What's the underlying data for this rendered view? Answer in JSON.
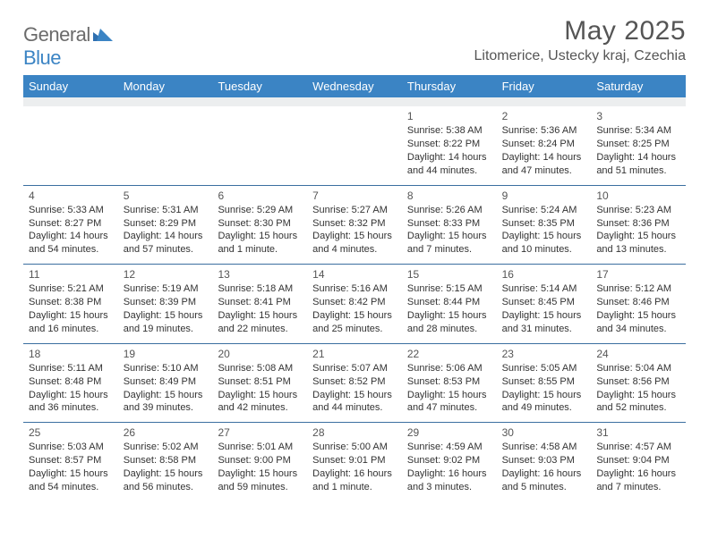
{
  "logo": {
    "general": "General",
    "blue": "Blue"
  },
  "title": "May 2025",
  "location": "Litomerice, Ustecky kraj, Czechia",
  "colors": {
    "header_bg": "#3b84c4",
    "header_text": "#ffffff",
    "sep_bg": "#eceeef",
    "row_border": "#3b6fa0",
    "text": "#333333",
    "title_text": "#555555"
  },
  "day_headers": [
    "Sunday",
    "Monday",
    "Tuesday",
    "Wednesday",
    "Thursday",
    "Friday",
    "Saturday"
  ],
  "weeks": [
    [
      {
        "n": "",
        "lines": []
      },
      {
        "n": "",
        "lines": []
      },
      {
        "n": "",
        "lines": []
      },
      {
        "n": "",
        "lines": []
      },
      {
        "n": "1",
        "lines": [
          "Sunrise: 5:38 AM",
          "Sunset: 8:22 PM",
          "Daylight: 14 hours and 44 minutes."
        ]
      },
      {
        "n": "2",
        "lines": [
          "Sunrise: 5:36 AM",
          "Sunset: 8:24 PM",
          "Daylight: 14 hours and 47 minutes."
        ]
      },
      {
        "n": "3",
        "lines": [
          "Sunrise: 5:34 AM",
          "Sunset: 8:25 PM",
          "Daylight: 14 hours and 51 minutes."
        ]
      }
    ],
    [
      {
        "n": "4",
        "lines": [
          "Sunrise: 5:33 AM",
          "Sunset: 8:27 PM",
          "Daylight: 14 hours and 54 minutes."
        ]
      },
      {
        "n": "5",
        "lines": [
          "Sunrise: 5:31 AM",
          "Sunset: 8:29 PM",
          "Daylight: 14 hours and 57 minutes."
        ]
      },
      {
        "n": "6",
        "lines": [
          "Sunrise: 5:29 AM",
          "Sunset: 8:30 PM",
          "Daylight: 15 hours and 1 minute."
        ]
      },
      {
        "n": "7",
        "lines": [
          "Sunrise: 5:27 AM",
          "Sunset: 8:32 PM",
          "Daylight: 15 hours and 4 minutes."
        ]
      },
      {
        "n": "8",
        "lines": [
          "Sunrise: 5:26 AM",
          "Sunset: 8:33 PM",
          "Daylight: 15 hours and 7 minutes."
        ]
      },
      {
        "n": "9",
        "lines": [
          "Sunrise: 5:24 AM",
          "Sunset: 8:35 PM",
          "Daylight: 15 hours and 10 minutes."
        ]
      },
      {
        "n": "10",
        "lines": [
          "Sunrise: 5:23 AM",
          "Sunset: 8:36 PM",
          "Daylight: 15 hours and 13 minutes."
        ]
      }
    ],
    [
      {
        "n": "11",
        "lines": [
          "Sunrise: 5:21 AM",
          "Sunset: 8:38 PM",
          "Daylight: 15 hours and 16 minutes."
        ]
      },
      {
        "n": "12",
        "lines": [
          "Sunrise: 5:19 AM",
          "Sunset: 8:39 PM",
          "Daylight: 15 hours and 19 minutes."
        ]
      },
      {
        "n": "13",
        "lines": [
          "Sunrise: 5:18 AM",
          "Sunset: 8:41 PM",
          "Daylight: 15 hours and 22 minutes."
        ]
      },
      {
        "n": "14",
        "lines": [
          "Sunrise: 5:16 AM",
          "Sunset: 8:42 PM",
          "Daylight: 15 hours and 25 minutes."
        ]
      },
      {
        "n": "15",
        "lines": [
          "Sunrise: 5:15 AM",
          "Sunset: 8:44 PM",
          "Daylight: 15 hours and 28 minutes."
        ]
      },
      {
        "n": "16",
        "lines": [
          "Sunrise: 5:14 AM",
          "Sunset: 8:45 PM",
          "Daylight: 15 hours and 31 minutes."
        ]
      },
      {
        "n": "17",
        "lines": [
          "Sunrise: 5:12 AM",
          "Sunset: 8:46 PM",
          "Daylight: 15 hours and 34 minutes."
        ]
      }
    ],
    [
      {
        "n": "18",
        "lines": [
          "Sunrise: 5:11 AM",
          "Sunset: 8:48 PM",
          "Daylight: 15 hours and 36 minutes."
        ]
      },
      {
        "n": "19",
        "lines": [
          "Sunrise: 5:10 AM",
          "Sunset: 8:49 PM",
          "Daylight: 15 hours and 39 minutes."
        ]
      },
      {
        "n": "20",
        "lines": [
          "Sunrise: 5:08 AM",
          "Sunset: 8:51 PM",
          "Daylight: 15 hours and 42 minutes."
        ]
      },
      {
        "n": "21",
        "lines": [
          "Sunrise: 5:07 AM",
          "Sunset: 8:52 PM",
          "Daylight: 15 hours and 44 minutes."
        ]
      },
      {
        "n": "22",
        "lines": [
          "Sunrise: 5:06 AM",
          "Sunset: 8:53 PM",
          "Daylight: 15 hours and 47 minutes."
        ]
      },
      {
        "n": "23",
        "lines": [
          "Sunrise: 5:05 AM",
          "Sunset: 8:55 PM",
          "Daylight: 15 hours and 49 minutes."
        ]
      },
      {
        "n": "24",
        "lines": [
          "Sunrise: 5:04 AM",
          "Sunset: 8:56 PM",
          "Daylight: 15 hours and 52 minutes."
        ]
      }
    ],
    [
      {
        "n": "25",
        "lines": [
          "Sunrise: 5:03 AM",
          "Sunset: 8:57 PM",
          "Daylight: 15 hours and 54 minutes."
        ]
      },
      {
        "n": "26",
        "lines": [
          "Sunrise: 5:02 AM",
          "Sunset: 8:58 PM",
          "Daylight: 15 hours and 56 minutes."
        ]
      },
      {
        "n": "27",
        "lines": [
          "Sunrise: 5:01 AM",
          "Sunset: 9:00 PM",
          "Daylight: 15 hours and 59 minutes."
        ]
      },
      {
        "n": "28",
        "lines": [
          "Sunrise: 5:00 AM",
          "Sunset: 9:01 PM",
          "Daylight: 16 hours and 1 minute."
        ]
      },
      {
        "n": "29",
        "lines": [
          "Sunrise: 4:59 AM",
          "Sunset: 9:02 PM",
          "Daylight: 16 hours and 3 minutes."
        ]
      },
      {
        "n": "30",
        "lines": [
          "Sunrise: 4:58 AM",
          "Sunset: 9:03 PM",
          "Daylight: 16 hours and 5 minutes."
        ]
      },
      {
        "n": "31",
        "lines": [
          "Sunrise: 4:57 AM",
          "Sunset: 9:04 PM",
          "Daylight: 16 hours and 7 minutes."
        ]
      }
    ]
  ]
}
